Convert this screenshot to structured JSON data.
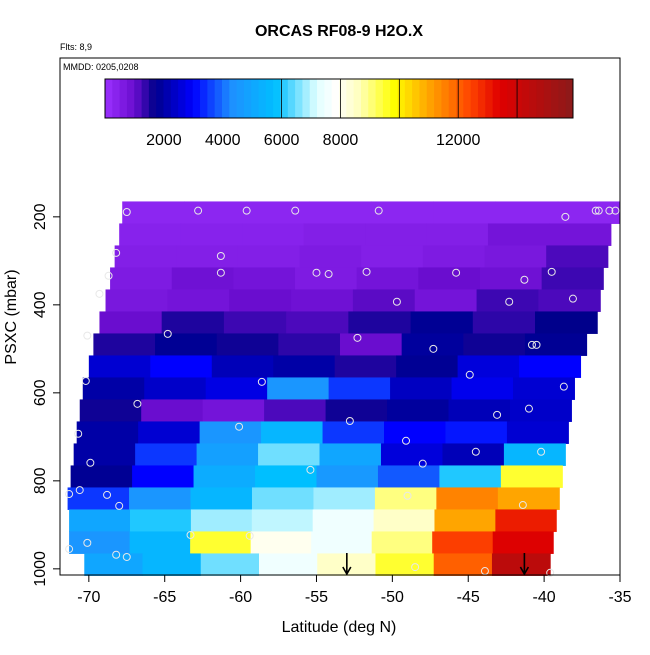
{
  "chart_data": {
    "type": "heatmap",
    "title": "ORCAS RF08-9 H2O.X",
    "flights": "Flts: 8,9",
    "dates": "MMDD: 0205,0208",
    "x_label": "Latitude (deg N)",
    "y_label": "PSXC (mbar)",
    "xlim": [
      -71.9,
      -35
    ],
    "xticks": [
      -70,
      -65,
      -60,
      -55,
      -50,
      -45,
      -40,
      -35
    ],
    "ylim": [
      1014,
      -161
    ],
    "yticks": [
      200,
      400,
      600,
      800,
      1000
    ],
    "row_height": 50,
    "colorbar_lim": [
      0,
      15900
    ],
    "colorbar_ticks": [
      2000,
      4000,
      6000,
      8000,
      12000
    ],
    "colorbar_lines": [
      6000,
      8000,
      10000,
      12000,
      14000
    ],
    "colorscale": [
      [
        0,
        "#9b30ff"
      ],
      [
        1000,
        "#6a0dcf"
      ],
      [
        1700,
        "#00008b"
      ],
      [
        3000,
        "#0000ff"
      ],
      [
        4300,
        "#1e90ff"
      ],
      [
        5800,
        "#00bfff"
      ],
      [
        7200,
        "#e0ffff"
      ],
      [
        7800,
        "#ffffff"
      ],
      [
        8600,
        "#ffffc0"
      ],
      [
        9800,
        "#ffff00"
      ],
      [
        11000,
        "#ffa500"
      ],
      [
        12400,
        "#ff4500"
      ],
      [
        13400,
        "#e00000"
      ],
      [
        15900,
        "#8b1a1a"
      ]
    ],
    "rows": [
      {
        "p": 190,
        "lat_start": -67.8,
        "lat_end": -35,
        "values": [
          300,
          300,
          300,
          300,
          300,
          300,
          300,
          300
        ]
      },
      {
        "p": 240,
        "lat_start": -68,
        "lat_end": -35.6,
        "values": [
          400,
          400,
          400,
          500,
          500,
          500,
          800,
          800
        ]
      },
      {
        "p": 290,
        "lat_start": -68.3,
        "lat_end": -35.8,
        "values": [
          500,
          500,
          500,
          600,
          500,
          600,
          700,
          1200
        ]
      },
      {
        "p": 340,
        "lat_start": -68.6,
        "lat_end": -36.1,
        "values": [
          600,
          900,
          800,
          600,
          800,
          1000,
          900,
          1300
        ]
      },
      {
        "p": 390,
        "lat_start": -68.9,
        "lat_end": -36.3,
        "values": [
          700,
          800,
          1000,
          900,
          1100,
          800,
          1300,
          1200
        ]
      },
      {
        "p": 440,
        "lat_start": -69.3,
        "lat_end": -36.5,
        "values": [
          1000,
          1500,
          1300,
          1200,
          1500,
          1800,
          1400,
          1700
        ]
      },
      {
        "p": 490,
        "lat_start": -69.7,
        "lat_end": -37.2,
        "values": [
          1500,
          1800,
          1600,
          1400,
          1000,
          1900,
          1600,
          1800
        ]
      },
      {
        "p": 540,
        "lat_start": -70,
        "lat_end": -37.6,
        "values": [
          2500,
          3000,
          2200,
          2000,
          1500,
          1800,
          2600,
          3000
        ]
      },
      {
        "p": 590,
        "lat_start": -70.4,
        "lat_end": -38,
        "values": [
          2000,
          2400,
          2700,
          4500,
          3500,
          2300,
          2800,
          2500
        ]
      },
      {
        "p": 640,
        "lat_start": -70.6,
        "lat_end": -38.2,
        "values": [
          1600,
          1000,
          800,
          1200,
          1600,
          1900,
          2200,
          2400
        ]
      },
      {
        "p": 690,
        "lat_start": -70.8,
        "lat_end": -38.4,
        "values": [
          2000,
          2500,
          4500,
          5500,
          3500,
          3000,
          3200,
          2500
        ]
      },
      {
        "p": 740,
        "lat_start": -71,
        "lat_end": -38.6,
        "values": [
          2000,
          3500,
          4800,
          6500,
          5000,
          2600,
          2200,
          5500
        ]
      },
      {
        "p": 790,
        "lat_start": -71.2,
        "lat_end": -38.8,
        "values": [
          1800,
          3000,
          5200,
          5800,
          4600,
          3800,
          6000,
          9500
        ]
      },
      {
        "p": 840,
        "lat_start": -71.4,
        "lat_end": -39,
        "values": [
          3500,
          4500,
          5500,
          6500,
          6800,
          9000,
          11500,
          11000
        ]
      },
      {
        "p": 890,
        "lat_start": -71.3,
        "lat_end": -39.2,
        "values": [
          5000,
          6000,
          6800,
          7000,
          7500,
          8500,
          11000,
          13000
        ]
      },
      {
        "p": 940,
        "lat_start": -71.3,
        "lat_end": -39.4,
        "values": [
          4500,
          5500,
          9500,
          8000,
          7500,
          9000,
          12500,
          13500
        ]
      },
      {
        "p": 990,
        "lat_start": -70.3,
        "lat_end": -39.6,
        "values": [
          5000,
          5500,
          6500,
          7500,
          8500,
          9500,
          12000,
          14500
        ]
      }
    ],
    "points": {
      "x": [
        -67.5,
        -62.8,
        -59.6,
        -56.4,
        -50.9,
        -38.6,
        -36.6,
        -36.4,
        -35.7,
        -35.3,
        -68.2,
        -61.3,
        -61.3,
        -68.7,
        -55.0,
        -54.2,
        -51.7,
        -45.8,
        -41.3,
        -39.5,
        -69.3,
        -49.7,
        -42.3,
        -38.1,
        -64.8,
        -52.3,
        -47.3,
        -40.8,
        -40.5,
        -70.1,
        -70.2,
        -58.6,
        -44.9,
        -38.7,
        -66.8,
        -41.0,
        -43.1,
        -52.8,
        -60.1,
        -70.7,
        -49.1,
        -44.5,
        -40.2,
        -69.9,
        -55.4,
        -48.0,
        -71.3,
        -70.6,
        -68.8,
        -68.0,
        -49.0,
        -41.4,
        -63.3,
        -59.4,
        -71.3,
        -70.1,
        -68.2,
        -67.5,
        -48.5,
        -43.9,
        -39.6
      ],
      "y": [
        189,
        186,
        186,
        186,
        186,
        200,
        186,
        186,
        186,
        186,
        282,
        289,
        327,
        334,
        327,
        330,
        325,
        327,
        343,
        325,
        375,
        393,
        393,
        386,
        466,
        475,
        500,
        491,
        491,
        470,
        573,
        575,
        559,
        586,
        625,
        636,
        650,
        664,
        677,
        693,
        709,
        734,
        734,
        759,
        775,
        761,
        830,
        821,
        832,
        857,
        834,
        855,
        923,
        925,
        955,
        941,
        968,
        973,
        996,
        1005,
        1009
      ]
    },
    "arrows_x": [
      -53,
      -41.3
    ]
  }
}
